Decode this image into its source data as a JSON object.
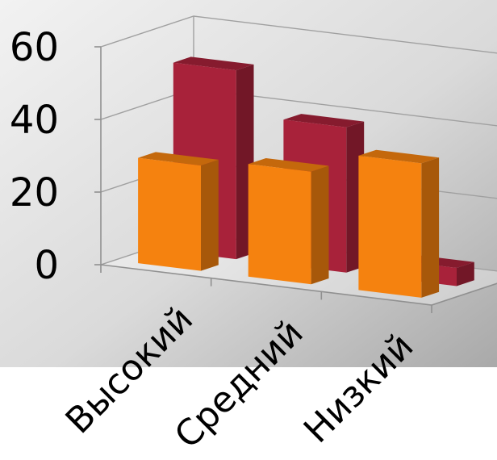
{
  "chart_data": {
    "type": "bar",
    "categories": [
      "Высокий",
      "Средний",
      "Низкий"
    ],
    "series": [
      {
        "values": [
          29,
          31,
          37
        ],
        "color": "#f5820f"
      },
      {
        "values": [
          52,
          40,
          5
        ],
        "color": "#a8223a"
      }
    ],
    "ylim": [
      0,
      60
    ],
    "yticks": [
      0,
      20,
      40,
      60
    ],
    "grid": true
  }
}
